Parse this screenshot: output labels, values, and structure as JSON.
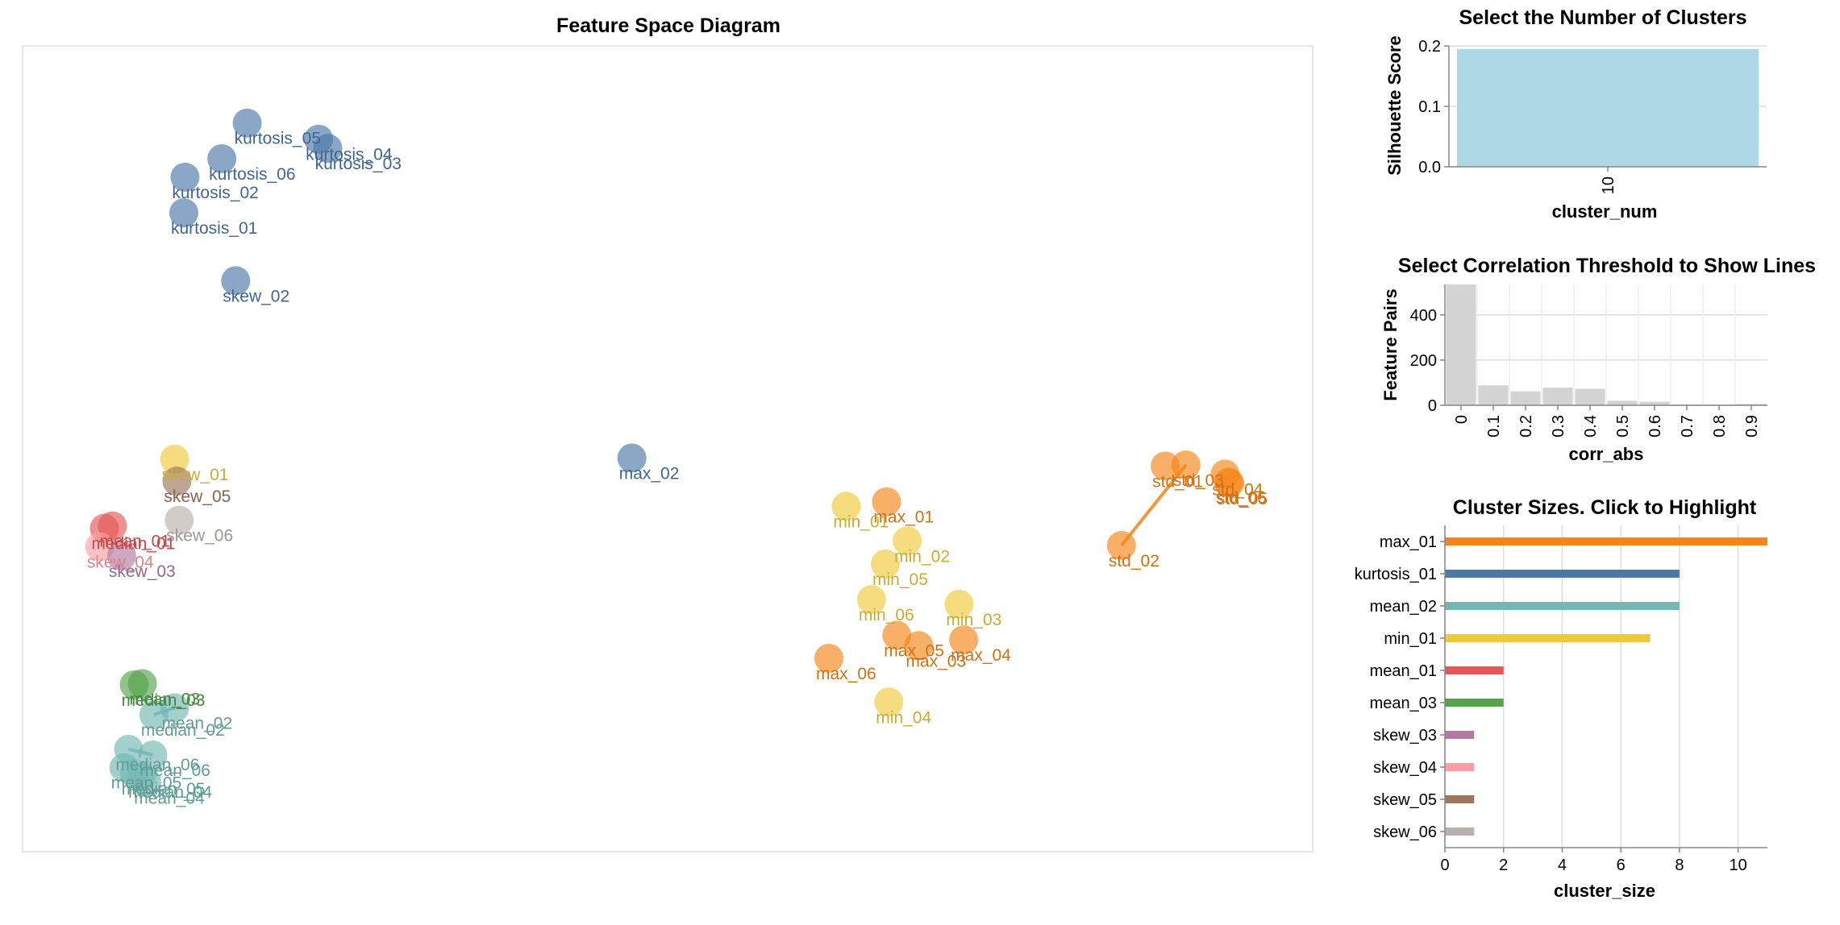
{
  "colors": {
    "blue": "#4c78a8",
    "orange": "#f58518",
    "red": "#e45756",
    "teal": "#72b7b2",
    "green": "#54a24b",
    "yellow": "#eeca3b",
    "purple": "#b279a2",
    "pink": "#ff9da6",
    "brown": "#9d755d",
    "gray": "#bab0ac",
    "sil_bar": "#add8e6",
    "hist_bar": "#d3d3d3"
  },
  "chart_data": [
    {
      "type": "scatter",
      "title": "Feature Space Diagram",
      "xlim": [
        0,
        1120
      ],
      "ylim": [
        0,
        700
      ],
      "points": [
        {
          "label": "kurtosis_05",
          "x": 195,
          "y": 67,
          "color": "blue"
        },
        {
          "label": "kurtosis_04",
          "x": 257,
          "y": 81,
          "color": "blue"
        },
        {
          "label": "kurtosis_03",
          "x": 265,
          "y": 89,
          "color": "blue"
        },
        {
          "label": "kurtosis_06",
          "x": 173,
          "y": 98,
          "color": "blue"
        },
        {
          "label": "kurtosis_02",
          "x": 141,
          "y": 114,
          "color": "blue"
        },
        {
          "label": "kurtosis_01",
          "x": 140,
          "y": 145,
          "color": "blue"
        },
        {
          "label": "skew_02",
          "x": 185,
          "y": 204,
          "color": "blue"
        },
        {
          "label": "max_02",
          "x": 529,
          "y": 358,
          "color": "blue"
        },
        {
          "label": "skew_01",
          "x": 132,
          "y": 359,
          "color": "yellow"
        },
        {
          "label": "skew_05",
          "x": 134,
          "y": 378,
          "color": "brown"
        },
        {
          "label": "skew_06",
          "x": 136,
          "y": 412,
          "color": "gray"
        },
        {
          "label": "median_01",
          "x": 71,
          "y": 419,
          "color": "red"
        },
        {
          "label": "mean_01",
          "x": 78,
          "y": 417,
          "color": "red"
        },
        {
          "label": "skew_04",
          "x": 67,
          "y": 435,
          "color": "pink"
        },
        {
          "label": "skew_03",
          "x": 86,
          "y": 443,
          "color": "purple"
        },
        {
          "label": "median_03",
          "x": 97,
          "y": 555,
          "color": "green"
        },
        {
          "label": "mean_03",
          "x": 104,
          "y": 554,
          "color": "green"
        },
        {
          "label": "mean_02",
          "x": 132,
          "y": 575,
          "color": "teal"
        },
        {
          "label": "median_02",
          "x": 114,
          "y": 581,
          "color": "teal"
        },
        {
          "label": "median_06",
          "x": 92,
          "y": 611,
          "color": "teal"
        },
        {
          "label": "mean_06",
          "x": 113,
          "y": 616,
          "color": "teal"
        },
        {
          "label": "mean_05",
          "x": 88,
          "y": 627,
          "color": "teal"
        },
        {
          "label": "median_05",
          "x": 97,
          "y": 632,
          "color": "teal"
        },
        {
          "label": "median_04",
          "x": 103,
          "y": 635,
          "color": "teal"
        },
        {
          "label": "mean_04",
          "x": 108,
          "y": 640,
          "color": "teal"
        },
        {
          "label": "max_01",
          "x": 750,
          "y": 396,
          "color": "orange"
        },
        {
          "label": "min_01",
          "x": 715,
          "y": 400,
          "color": "yellow"
        },
        {
          "label": "min_02",
          "x": 768,
          "y": 430,
          "color": "yellow"
        },
        {
          "label": "min_05",
          "x": 749,
          "y": 450,
          "color": "yellow"
        },
        {
          "label": "min_06",
          "x": 737,
          "y": 481,
          "color": "yellow"
        },
        {
          "label": "min_03",
          "x": 813,
          "y": 485,
          "color": "yellow"
        },
        {
          "label": "max_05",
          "x": 759,
          "y": 512,
          "color": "orange"
        },
        {
          "label": "max_03",
          "x": 778,
          "y": 521,
          "color": "orange"
        },
        {
          "label": "max_04",
          "x": 817,
          "y": 516,
          "color": "orange"
        },
        {
          "label": "max_06",
          "x": 700,
          "y": 532,
          "color": "orange"
        },
        {
          "label": "min_04",
          "x": 752,
          "y": 570,
          "color": "yellow"
        },
        {
          "label": "std_01",
          "x": 992,
          "y": 365,
          "color": "orange"
        },
        {
          "label": "std_03",
          "x": 1010,
          "y": 364,
          "color": "orange"
        },
        {
          "label": "std_04",
          "x": 1044,
          "y": 372,
          "color": "orange"
        },
        {
          "label": "std_06",
          "x": 1047,
          "y": 379,
          "color": "orange"
        },
        {
          "label": "std_05",
          "x": 1048,
          "y": 380,
          "color": "orange"
        },
        {
          "label": "std_02",
          "x": 954,
          "y": 434,
          "color": "orange"
        }
      ],
      "lines": [
        {
          "from": "std_02",
          "to": "std_03",
          "color": "orange"
        },
        {
          "from": "mean_02",
          "to": "median_02",
          "color": "teal"
        },
        {
          "from": "median_06",
          "to": "mean_06",
          "color": "teal"
        }
      ]
    },
    {
      "type": "bar",
      "title": "Select the Number of Clusters",
      "xlabel": "cluster_num",
      "ylabel": "Silhouette Score",
      "categories": [
        "10"
      ],
      "values": [
        0.195
      ],
      "ylim": [
        0,
        0.2
      ],
      "yticks": [
        "0.0",
        "0.1",
        "0.2"
      ],
      "grid": true
    },
    {
      "type": "bar",
      "title": "Select Correlation Threshold to Show Lines",
      "xlabel": "corr_abs",
      "ylabel": "Feature Pairs",
      "categories": [
        "0",
        "0.1",
        "0.2",
        "0.3",
        "0.4",
        "0.5",
        "0.6",
        "0.7",
        "0.8",
        "0.9"
      ],
      "values": [
        535,
        88,
        62,
        78,
        73,
        20,
        16,
        4,
        3,
        6
      ],
      "ylim": [
        0,
        535
      ],
      "yticks": [
        "0",
        "200",
        "400"
      ],
      "grid": true
    },
    {
      "type": "bar",
      "orientation": "horizontal",
      "title": "Cluster Sizes. Click to Highlight",
      "xlabel": "cluster_size",
      "ylabel": "",
      "categories": [
        "max_01",
        "kurtosis_01",
        "mean_02",
        "min_01",
        "mean_01",
        "mean_03",
        "skew_03",
        "skew_04",
        "skew_05",
        "skew_06"
      ],
      "values": [
        11,
        8,
        8,
        7,
        2,
        2,
        1,
        1,
        1,
        1
      ],
      "bar_colors": [
        "orange",
        "blue",
        "teal",
        "yellow",
        "red",
        "green",
        "purple",
        "pink",
        "brown",
        "gray"
      ],
      "xlim": [
        0,
        11
      ],
      "xticks": [
        "0",
        "2",
        "4",
        "6",
        "8",
        "10"
      ],
      "grid": true
    }
  ]
}
